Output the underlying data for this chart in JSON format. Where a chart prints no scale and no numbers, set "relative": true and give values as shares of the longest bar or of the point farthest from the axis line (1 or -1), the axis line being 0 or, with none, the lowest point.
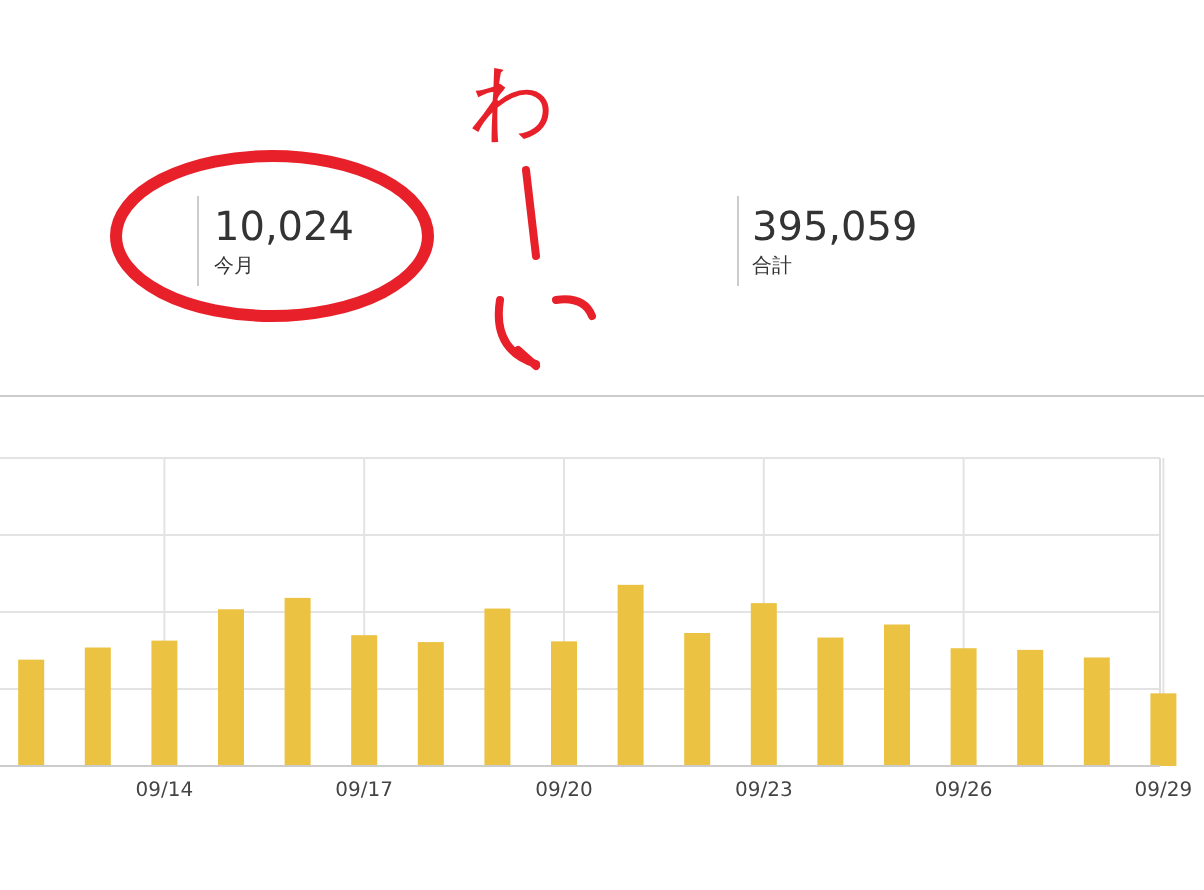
{
  "chart_data": [
    {
      "type": "other",
      "annotations": [
        "10,024",
        "今月",
        "395,059",
        "合計",
        "わ"
      ]
    },
    {
      "type": "bar",
      "relative": true,
      "grid": true,
      "tick_labels": "x",
      "color": "#ecc243",
      "categories": [
        null,
        null,
        "09/14",
        null,
        null,
        "09/17",
        null,
        null,
        "09/20",
        null,
        null,
        "09/23",
        null,
        null,
        "09/26",
        null,
        null,
        "09/29"
      ],
      "values": [
        0.587,
        0.654,
        0.692,
        0.865,
        0.928,
        0.722,
        0.684,
        0.869,
        0.688,
        1,
        0.734,
        0.899,
        0.709,
        0.781,
        0.65,
        0.641,
        0.599,
        0.401
      ]
    }
  ]
}
